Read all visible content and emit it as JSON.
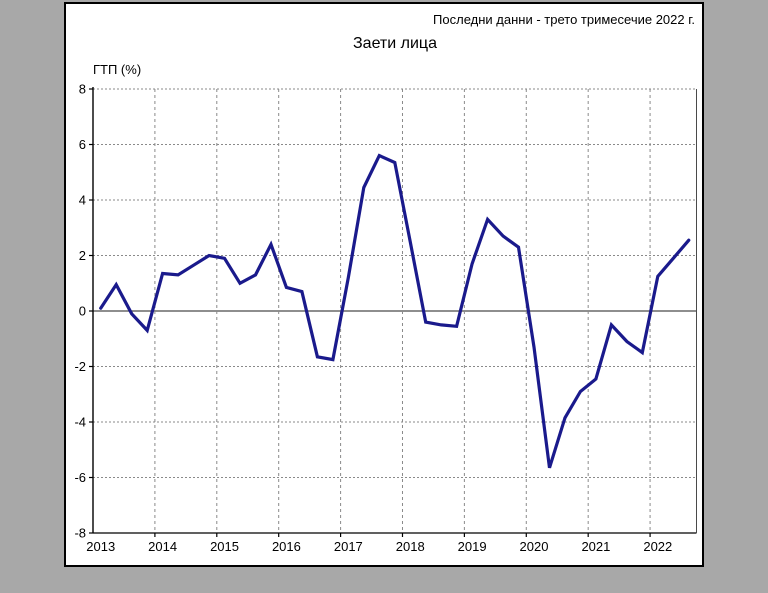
{
  "panel": {
    "header_note": "Последни данни - трето тримесечие 2022 г.",
    "title": "Заети лица",
    "y_axis_label": "ГТП (%)"
  },
  "colors": {
    "background": "#a8a8a8",
    "panel": "#ffffff",
    "border": "#000000",
    "line": "#1a1a8c",
    "grid": "#8a8a8a",
    "zero_line": "#4a4a4a",
    "axis": "#000000"
  },
  "chart_data": {
    "type": "line",
    "title": "Заети лица",
    "subtitle": "Последни данни - трето тримесечие 2022 г.",
    "xlabel": "",
    "ylabel": "ГТП (%)",
    "ylim": [
      -8,
      8
    ],
    "yticks": [
      8,
      6,
      4,
      2,
      0,
      -2,
      -4,
      -6,
      -8
    ],
    "x_tick_labels": [
      "2013",
      "2014",
      "2015",
      "2016",
      "2017",
      "2018",
      "2019",
      "2020",
      "2021",
      "2022"
    ],
    "frequency": "quarterly",
    "grid": "dashed",
    "legend_position": "none",
    "x": [
      "2013Q1",
      "2013Q2",
      "2013Q3",
      "2013Q4",
      "2014Q1",
      "2014Q2",
      "2014Q3",
      "2014Q4",
      "2015Q1",
      "2015Q2",
      "2015Q3",
      "2015Q4",
      "2016Q1",
      "2016Q2",
      "2016Q3",
      "2016Q4",
      "2017Q1",
      "2017Q2",
      "2017Q3",
      "2017Q4",
      "2018Q1",
      "2018Q2",
      "2018Q3",
      "2018Q4",
      "2019Q1",
      "2019Q2",
      "2019Q3",
      "2019Q4",
      "2020Q1",
      "2020Q2",
      "2020Q3",
      "2020Q4",
      "2021Q1",
      "2021Q2",
      "2021Q3",
      "2021Q4",
      "2022Q1",
      "2022Q2",
      "2022Q3"
    ],
    "values": [
      0.1,
      0.95,
      -0.1,
      -0.7,
      1.35,
      1.3,
      1.65,
      2.0,
      1.9,
      1.0,
      1.3,
      2.4,
      0.85,
      0.7,
      -1.65,
      -1.75,
      1.2,
      4.45,
      5.6,
      5.35,
      2.5,
      -0.4,
      -0.5,
      -0.55,
      1.7,
      3.3,
      2.7,
      2.3,
      -1.3,
      -5.65,
      -3.85,
      -2.9,
      -2.45,
      -0.5,
      -1.1,
      -1.5,
      1.25,
      1.9,
      2.55
    ]
  }
}
